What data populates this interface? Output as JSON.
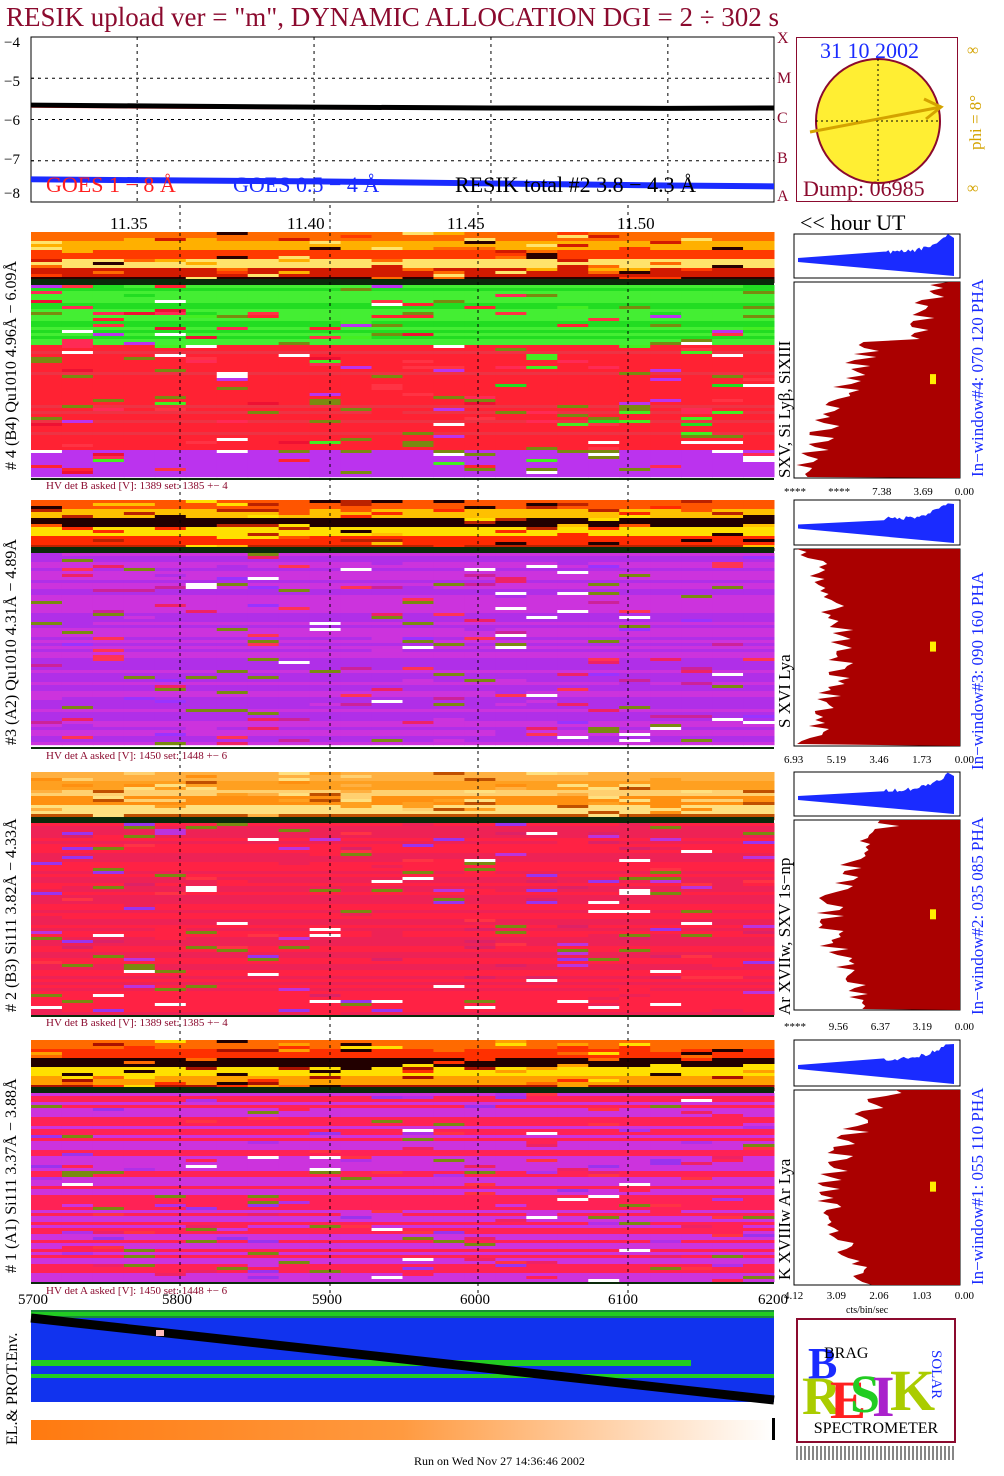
{
  "title": "RESIK upload ver = \"m\", DYNAMIC ALLOCATION  DGI =   2 ÷ 302 s",
  "colors": {
    "maroon": "#8b0a2e",
    "goes_red": "#ff1e1e",
    "goes_blue": "#1a2bff",
    "green": "#22cc22",
    "purple": "#9a2de0",
    "hist": "#aa0000",
    "sun": "#ffee33",
    "gold": "#d4a300"
  },
  "light_curve": {
    "y_ticks": [
      "−4",
      "−5",
      "−6",
      "−7",
      "−8"
    ],
    "legend": {
      "goes1": "GOES 1 − 8 Å",
      "goes2": "GOES 0.5 − 4 Å",
      "resik": "RESIK total #2  3.8 − 4.3 Å"
    },
    "class_letters": [
      "X",
      "M",
      "C",
      "B",
      "A"
    ]
  },
  "chart_data": {
    "type": "line",
    "title": "RESIK upload ver = \"m\", DYNAMIC ALLOCATION  DGI =   2 ÷ 302 s",
    "xlabel": "<< hour UT",
    "ylabel": "",
    "x": [
      11.32,
      11.35,
      11.4,
      11.45,
      11.5,
      11.53
    ],
    "ylim": [
      -8,
      -4
    ],
    "series": [
      {
        "name": "GOES 1 − 8 Å",
        "values": [
          -5.68,
          -5.7,
          -5.72,
          -5.73,
          -5.74,
          -5.73
        ]
      },
      {
        "name": "GOES 0.5 − 4 Å",
        "values": [
          -7.45,
          -7.47,
          -7.5,
          -7.55,
          -7.6,
          -7.62
        ]
      },
      {
        "name": "RESIK total #2  3.8 − 4.3 Å",
        "values": [
          -5.65,
          -5.67,
          -5.7,
          -5.72,
          -5.73,
          -5.72
        ]
      }
    ]
  },
  "time_axis": {
    "ticks": [
      "11.35",
      "11.40",
      "11.45",
      "11.50"
    ],
    "label": "<< hour UT"
  },
  "sun": {
    "date": "31 10 2002",
    "dump": "Dump: 06985",
    "phi": "phi =  8°",
    "inf1": "∞",
    "inf2": "∞"
  },
  "channels": [
    {
      "label": "# 4 (B4) Qu1010 4.96Å − 6.09Å",
      "hv": "HV det B asked [V]:  1389 set:  1385 +−    4",
      "lines": "SXV, Si Lyβ, SiXIII",
      "window": "In−window#4:  070 120 PHA",
      "ticks": [
        "****",
        "****",
        "7.38",
        "3.69",
        "0.00"
      ]
    },
    {
      "label": "#3 (A2) Qu1010  4.31Å − 4.89Å",
      "hv": "HV det A asked [V]:  1450 set:  1448 +−    6",
      "lines": "S XVI Lya",
      "window": "In−window#3:  090 160 PHA",
      "ticks": [
        "6.93",
        "5.19",
        "3.46",
        "1.73",
        "0.00"
      ]
    },
    {
      "label": "# 2 (B3) Si111  3.82Å − 4.33Å",
      "hv": "HV det B asked [V]:  1389 set:  1385 +−    4",
      "lines": "Ar XVIIw, SXV 1s−np",
      "window": "In−window#2:  035 085 PHA",
      "ticks": [
        "****",
        "9.56",
        "6.37",
        "3.19",
        "0.00"
      ]
    },
    {
      "label": "# 1 (A1) Si111  3.37Å − 3.88Å",
      "hv": "HV det A asked [V]:  1450 set:  1448 +−    6",
      "lines": "K XVIIIw  Ar Lya",
      "window": "In−window#1:  055 110 PHA",
      "ticks": [
        "4.12",
        "3.09",
        "2.06",
        "1.03",
        "0.00"
      ]
    }
  ],
  "hist_units": "cts/bin/sec",
  "bottom_axis": {
    "ticks": [
      "5700",
      "5800",
      "5900",
      "6000",
      "6100",
      "6200"
    ],
    "label": "EL.& PROT.Env."
  },
  "logo": {
    "letters": "RESIK",
    "sub": "SPECTROMETER",
    "brag": "BRAG",
    "solar": "SOLAR"
  },
  "footer": "Run on Wed Nov 27 14:36:46 2002"
}
